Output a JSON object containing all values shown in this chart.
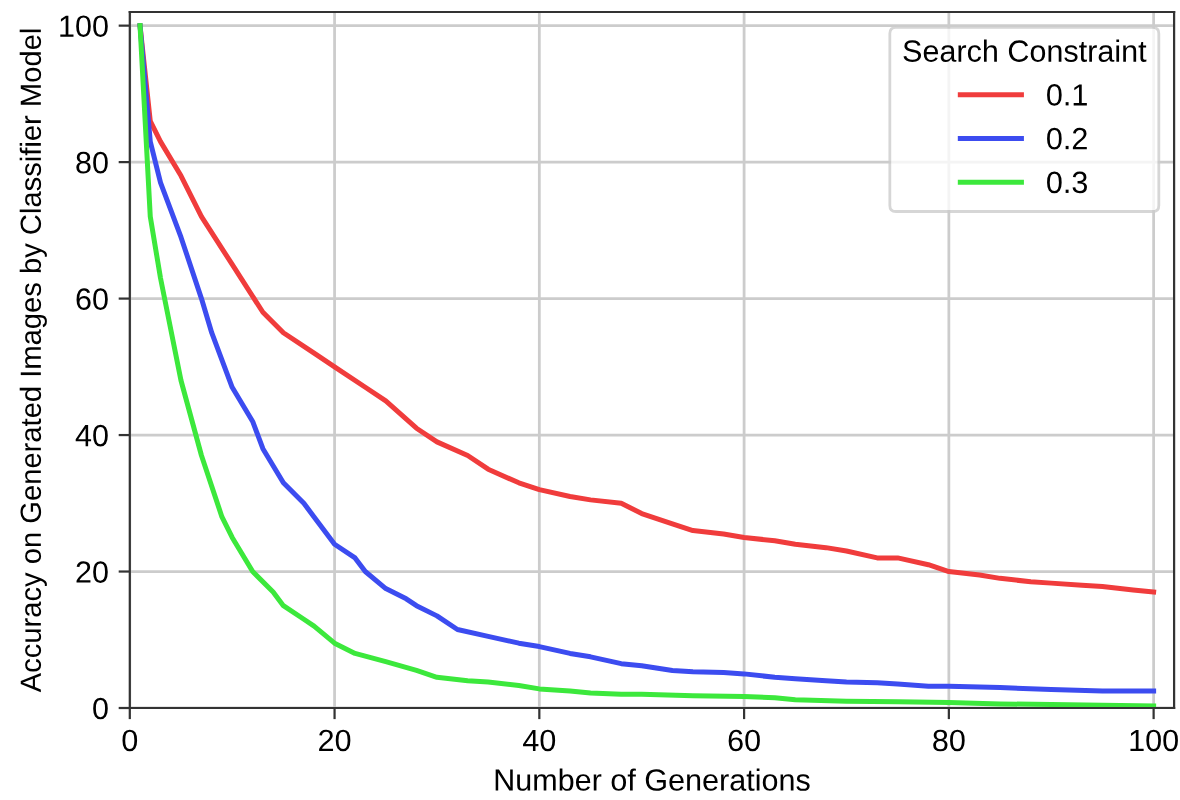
{
  "chart_data": {
    "type": "line",
    "xlabel": "Number of Generations",
    "ylabel": "Accuracy on Generated Images by Classifier Model",
    "legend_title": "Search Constraint",
    "xlim": [
      0,
      102
    ],
    "ylim": [
      0,
      102
    ],
    "xticks": [
      0,
      20,
      40,
      60,
      80,
      100
    ],
    "yticks": [
      0,
      20,
      40,
      60,
      80,
      100
    ],
    "grid": true,
    "legend": "top right",
    "line_style": "solid",
    "marker": "none",
    "series": [
      {
        "name": "0.1",
        "color": "#f03c3c",
        "x": [
          1,
          2,
          3,
          5,
          7,
          10,
          13,
          15,
          18,
          20,
          23,
          25,
          28,
          30,
          33,
          35,
          38,
          40,
          43,
          45,
          48,
          50,
          53,
          55,
          58,
          60,
          63,
          65,
          68,
          70,
          73,
          75,
          78,
          80,
          83,
          85,
          88,
          90,
          93,
          95,
          98,
          100
        ],
        "values": [
          100,
          86,
          83,
          78,
          72,
          65,
          58,
          55,
          52,
          50,
          47,
          45,
          41,
          39,
          37,
          35,
          33,
          32,
          31,
          30.5,
          30,
          28.5,
          27,
          26,
          25.5,
          25,
          24.5,
          24,
          23.5,
          23,
          22,
          22,
          21,
          20,
          19.5,
          19,
          18.5,
          18.3,
          18,
          17.8,
          17.3,
          17
        ]
      },
      {
        "name": "0.2",
        "color": "#3c4cf0",
        "x": [
          1,
          2,
          3,
          5,
          7,
          8,
          10,
          12,
          13,
          15,
          17,
          18,
          20,
          22,
          23,
          25,
          27,
          28,
          30,
          32,
          35,
          38,
          40,
          43,
          45,
          48,
          50,
          53,
          55,
          58,
          60,
          63,
          65,
          68,
          70,
          73,
          75,
          78,
          80,
          85,
          90,
          95,
          100
        ],
        "values": [
          100,
          83,
          77,
          69,
          60,
          55,
          47,
          42,
          38,
          33,
          30,
          28,
          24,
          22,
          20,
          17.5,
          16,
          15,
          13.5,
          11.5,
          10.5,
          9.5,
          9,
          8,
          7.5,
          6.5,
          6.2,
          5.5,
          5.3,
          5.2,
          5,
          4.5,
          4.3,
          4,
          3.8,
          3.7,
          3.5,
          3.2,
          3.2,
          3,
          2.7,
          2.5,
          2.5
        ]
      },
      {
        "name": "0.3",
        "color": "#3ce83c",
        "x": [
          1,
          2,
          3,
          5,
          7,
          9,
          10,
          12,
          14,
          15,
          17,
          18,
          20,
          22,
          25,
          28,
          30,
          33,
          35,
          38,
          40,
          43,
          45,
          48,
          50,
          55,
          60,
          63,
          65,
          70,
          75,
          80,
          85,
          90,
          95,
          100
        ],
        "values": [
          100,
          72,
          63,
          48,
          37,
          28,
          25,
          20,
          17,
          15,
          13,
          12,
          9.5,
          8,
          6.8,
          5.5,
          4.5,
          4,
          3.8,
          3.3,
          2.8,
          2.5,
          2.2,
          2,
          2,
          1.8,
          1.7,
          1.5,
          1.2,
          1,
          0.9,
          0.8,
          0.6,
          0.5,
          0.4,
          0.3
        ]
      }
    ]
  }
}
